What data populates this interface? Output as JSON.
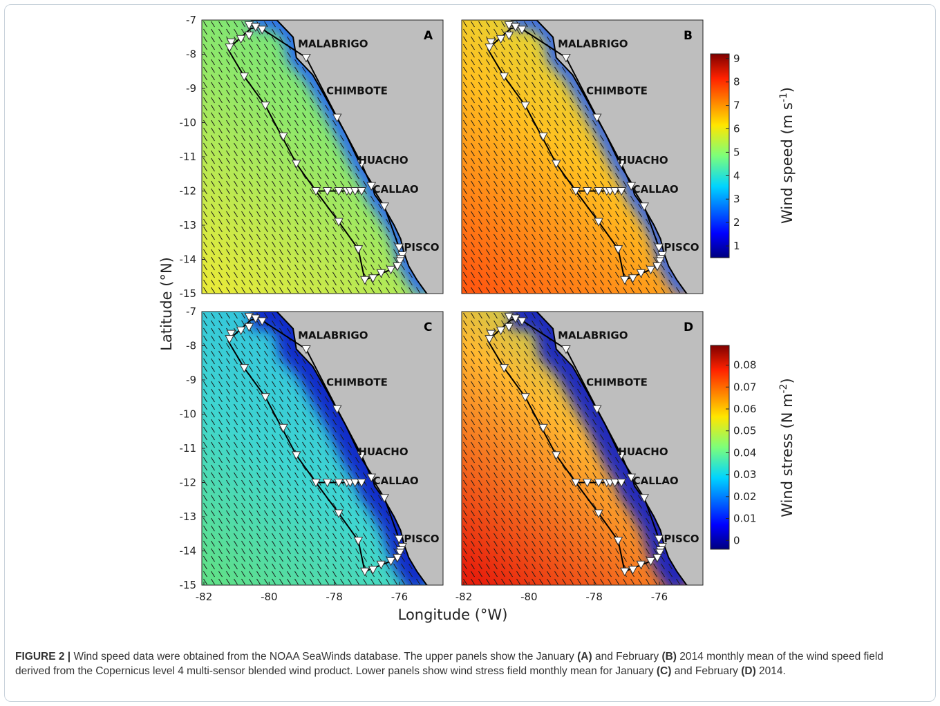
{
  "figure": {
    "panels": [
      {
        "id": "A",
        "field": "speed",
        "month": "January",
        "sw_strength": 0.45
      },
      {
        "id": "B",
        "field": "speed",
        "month": "February",
        "sw_strength": 1.0
      },
      {
        "id": "C",
        "field": "stress",
        "month": "January",
        "sw_strength": 0.4
      },
      {
        "id": "D",
        "field": "stress",
        "month": "February",
        "sw_strength": 1.0
      }
    ],
    "x_ticks": [
      "-82",
      "-80",
      "-78",
      "-76"
    ],
    "y_ticks": [
      "-7",
      "-8",
      "-9",
      "-10",
      "-11",
      "-12",
      "-13",
      "-14",
      "-15"
    ],
    "x_label": "Longitude (°W)",
    "y_label": "Latitude (°N)",
    "cities": [
      {
        "name": "MALABRIGO",
        "lon": -79.45,
        "lat": -7.7
      },
      {
        "name": "CHIMBOTE",
        "lon": -78.58,
        "lat": -9.07
      },
      {
        "name": "HUACHO",
        "lon": -77.6,
        "lat": -11.1
      },
      {
        "name": "CALLAO",
        "lon": -77.15,
        "lat": -11.95
      },
      {
        "name": "PISCO",
        "lon": -76.2,
        "lat": -13.65
      }
    ],
    "coast": [
      [
        -80.9,
        -7.0
      ],
      [
        -80.1,
        -7.0
      ],
      [
        -79.6,
        -7.5
      ],
      [
        -79.5,
        -8.1
      ],
      [
        -79.0,
        -8.6
      ],
      [
        -78.7,
        -9.1
      ],
      [
        -78.35,
        -9.7
      ],
      [
        -78.0,
        -10.3
      ],
      [
        -77.7,
        -10.9
      ],
      [
        -77.5,
        -11.3
      ],
      [
        -77.2,
        -11.75
      ],
      [
        -77.1,
        -12.1
      ],
      [
        -76.8,
        -12.5
      ],
      [
        -76.5,
        -13.0
      ],
      [
        -76.3,
        -13.4
      ],
      [
        -76.2,
        -13.8
      ],
      [
        -76.05,
        -14.2
      ],
      [
        -75.8,
        -14.6
      ],
      [
        -75.5,
        -15.0
      ]
    ],
    "stations": [
      [
        -80.95,
        -7.15
      ],
      [
        -80.75,
        -7.2
      ],
      [
        -80.55,
        -7.28
      ],
      [
        -80.95,
        -7.45
      ],
      [
        -81.2,
        -7.55
      ],
      [
        -81.5,
        -7.65
      ],
      [
        -81.55,
        -7.8
      ],
      [
        -79.2,
        -8.1
      ],
      [
        -78.25,
        -9.85
      ],
      [
        -77.5,
        -11.2
      ],
      [
        -77.2,
        -11.85
      ],
      [
        -76.8,
        -12.45
      ],
      [
        -76.35,
        -13.65
      ],
      [
        -76.25,
        -13.88
      ],
      [
        -76.3,
        -13.98
      ],
      [
        -76.32,
        -14.05
      ],
      [
        -76.4,
        -14.2
      ],
      [
        -76.6,
        -14.3
      ],
      [
        -76.9,
        -14.4
      ],
      [
        -77.15,
        -14.55
      ],
      [
        -77.4,
        -14.6
      ],
      [
        -77.6,
        -13.7
      ],
      [
        -78.2,
        -12.9
      ],
      [
        -78.9,
        -12.0
      ],
      [
        -78.55,
        -12.0
      ],
      [
        -78.2,
        -12.0
      ],
      [
        -77.95,
        -12.0
      ],
      [
        -77.85,
        -12.0
      ],
      [
        -77.7,
        -12.0
      ],
      [
        -77.5,
        -12.0
      ],
      [
        -79.5,
        -11.2
      ],
      [
        -79.9,
        -10.4
      ],
      [
        -80.45,
        -9.5
      ],
      [
        -81.1,
        -8.65
      ]
    ],
    "track": [
      [
        -81.6,
        -7.85
      ],
      [
        -80.9,
        -7.25
      ],
      [
        -80.65,
        -7.2
      ],
      [
        -79.2,
        -8.1
      ],
      [
        -78.25,
        -9.85
      ],
      [
        -77.5,
        -11.2
      ],
      [
        -77.2,
        -11.85
      ],
      [
        -76.8,
        -12.45
      ],
      [
        -76.35,
        -13.65
      ],
      [
        -76.3,
        -14.1
      ],
      [
        -76.6,
        -14.3
      ],
      [
        -77.4,
        -14.6
      ],
      [
        -77.6,
        -13.7
      ],
      [
        -78.2,
        -12.9
      ],
      [
        -78.9,
        -12.0
      ],
      [
        -77.4,
        -12.0
      ],
      [
        -78.9,
        -12.0
      ],
      [
        -79.5,
        -11.2
      ],
      [
        -80.45,
        -9.5
      ],
      [
        -81.1,
        -8.65
      ],
      [
        -81.6,
        -7.85
      ]
    ],
    "colorbar_speed": {
      "label_main": "Wind speed (m s",
      "label_sup": "-1",
      "label_end": ")",
      "ticks": [
        "1",
        "2",
        "3",
        "4",
        "5",
        "6",
        "7",
        "8",
        "9"
      ],
      "vmin": 0.5,
      "vmax": 9.2
    },
    "colorbar_stress": {
      "label_main": "Wind stress (N m",
      "label_sup": "-2",
      "label_end": ")",
      "ticks": [
        "0",
        "0.01",
        "0.02",
        "0.03",
        "0.04",
        "0.05",
        "0.06",
        "0.07",
        "0.08"
      ],
      "vmin": -0.004,
      "vmax": 0.089
    }
  },
  "caption": {
    "figure_label": "FIGURE 2 |",
    "t1": " Wind speed data were obtained from the NOAA SeaWinds database. The upper panels show the January ",
    "labA": "(A)",
    "t2": " and February ",
    "labB": "(B)",
    "t3": " 2014 monthly mean of the wind speed field derived from the Copernicus level 4 multi-sensor blended wind product. Lower panels show wind stress field monthly mean for January ",
    "labC": "(C)",
    "t4": " and February ",
    "labD": "(D)",
    "t5": " 2014."
  }
}
